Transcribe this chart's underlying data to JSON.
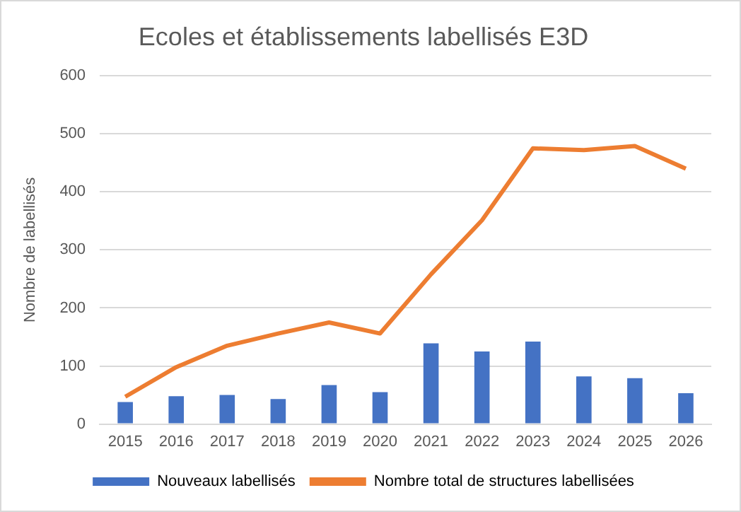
{
  "chart_data": {
    "type": "bar",
    "title": "Ecoles et établissements labellisés E3D",
    "ylabel": "Nombre de labellisés",
    "categories": [
      "2015",
      "2016",
      "2017",
      "2018",
      "2019",
      "2020",
      "2021",
      "2022",
      "2023",
      "2024",
      "2025",
      "2026"
    ],
    "series": [
      {
        "name": "Nouveaux labellisés",
        "color": "#4472c4",
        "values": [
          38,
          48,
          50,
          43,
          67,
          55,
          139,
          125,
          142,
          82,
          79,
          53
        ]
      },
      {
        "name": "Nombre total de structures labellisées",
        "type": "line",
        "color": "#ed7d31",
        "values": [
          47,
          98,
          135,
          156,
          175,
          156,
          258,
          351,
          475,
          472,
          479,
          440
        ]
      }
    ],
    "ylim": [
      0,
      600
    ],
    "yticks": [
      0,
      100,
      200,
      300,
      400,
      500,
      600
    ],
    "grid": "y",
    "legend": "bottom",
    "marker": "none"
  }
}
